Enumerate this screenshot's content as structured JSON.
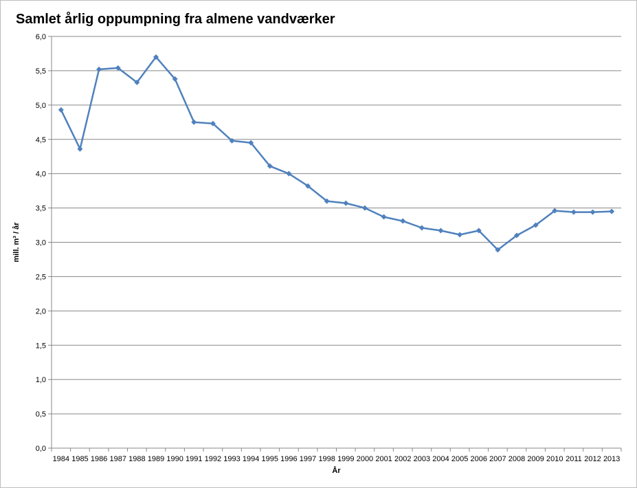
{
  "chart_data": {
    "type": "line",
    "title": "Samlet årlig oppumpning fra almene vandværker",
    "xlabel": "År",
    "ylabel": "mill. m³ / år",
    "ylim": [
      0,
      6
    ],
    "yticks": [
      "0,0",
      "0,5",
      "1,0",
      "1,5",
      "2,0",
      "2,5",
      "3,0",
      "3,5",
      "4,0",
      "4,5",
      "5,0",
      "5,5",
      "6,0"
    ],
    "grid": true,
    "legend": "none",
    "categories": [
      "1984",
      "1985",
      "1986",
      "1987",
      "1988",
      "1989",
      "1990",
      "1991",
      "1992",
      "1993",
      "1994",
      "1995",
      "1996",
      "1997",
      "1998",
      "1999",
      "2000",
      "2001",
      "2002",
      "2003",
      "2004",
      "2005",
      "2006",
      "2007",
      "2008",
      "2009",
      "2010",
      "2011",
      "2012",
      "2013"
    ],
    "series": [
      {
        "color": "#4f81bd",
        "values": [
          4.93,
          4.36,
          5.52,
          5.54,
          5.33,
          5.7,
          5.38,
          4.75,
          4.73,
          4.48,
          4.45,
          4.11,
          4.0,
          3.82,
          3.6,
          3.57,
          3.5,
          3.37,
          3.31,
          3.21,
          3.17,
          3.11,
          3.17,
          2.89,
          3.1,
          3.25,
          3.46,
          3.44,
          3.44,
          3.45
        ]
      }
    ]
  }
}
